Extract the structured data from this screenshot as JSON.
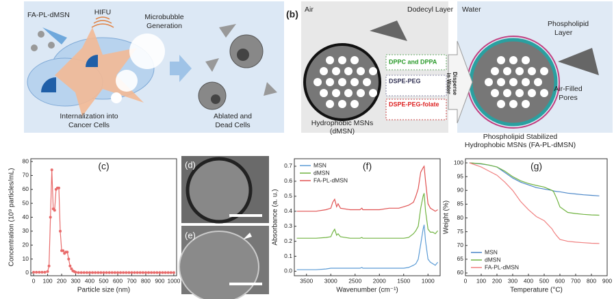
{
  "panel_a": {
    "fa_pl_dmsn": "FA-PL-dMSN",
    "hifu": "HIFU",
    "microbubble": [
      "Microbubble",
      "Generation"
    ],
    "internalization": [
      "Internalization into",
      "Cancer Cells"
    ],
    "ablated": [
      "Ablated and",
      "Dead Cells"
    ]
  },
  "panel_b": {
    "label": "(b)",
    "air": "Air",
    "dodecyl": "Dodecyl Layer",
    "dppc": "DPPC and DPPA",
    "dspe_peg": "DSPE-PEG",
    "dspe_peg_folate": "DSPE-PEG-folate",
    "disperse": [
      "Disperse",
      "in Water"
    ],
    "water": "Water",
    "phospholipid": [
      "Phospholipid",
      "Layer"
    ],
    "pores": [
      "Air-Filled",
      "Pores"
    ],
    "dmsn": [
      "Hydrophobic MSNs",
      "(dMSN)"
    ],
    "fa_pl": [
      "Phospholipid Stabilized",
      "Hydrophobic MSNs (FA-PL-dMSN)"
    ]
  },
  "panel_d": "(d)",
  "panel_e": "(e)",
  "chart_data": [
    {
      "type": "line",
      "title": "(c)",
      "xlabel": "Particle size (nm)",
      "ylabel": "Concentration (10⁹ particles/mL)",
      "x": [
        0,
        20,
        40,
        60,
        80,
        100,
        110,
        120,
        130,
        140,
        150,
        160,
        170,
        180,
        190,
        200,
        210,
        220,
        230,
        240,
        250,
        260,
        270,
        280,
        290,
        300,
        320,
        340,
        360,
        380,
        400,
        420,
        440,
        460,
        480,
        500,
        520,
        540,
        560,
        580,
        600,
        620,
        640,
        660,
        680,
        700,
        720,
        740,
        760,
        780,
        800,
        820,
        840,
        860,
        880,
        900,
        920,
        940,
        960,
        980,
        1000
      ],
      "series": [
        {
          "color": "#e86b6b",
          "markers": true,
          "values": [
            0.5,
            0.5,
            0.5,
            0.5,
            0.5,
            1,
            5,
            40,
            74,
            46,
            45,
            60,
            61,
            61,
            30,
            16,
            16,
            14,
            15,
            15,
            10,
            5,
            3,
            1.5,
            1,
            0.5,
            0.3,
            0.3,
            0.3,
            0.3,
            0.3,
            0.3,
            0.3,
            0.3,
            0.3,
            0.3,
            0.3,
            0.3,
            0.3,
            0.3,
            0.3,
            0.3,
            0.3,
            0.3,
            0.3,
            0.3,
            0.3,
            0.3,
            0.3,
            0.3,
            0.3,
            0.3,
            0.3,
            0.3,
            0.3,
            0.3,
            0.3,
            0.3,
            0.3,
            0.3,
            0.3
          ]
        }
      ],
      "xlim": [
        -20,
        1020
      ],
      "ylim": [
        -2,
        82
      ],
      "xticks": [
        0,
        100,
        200,
        300,
        400,
        500,
        600,
        700,
        800,
        900,
        1000
      ],
      "yticks": [
        0,
        10,
        20,
        30,
        40,
        50,
        60,
        70,
        80
      ]
    },
    {
      "type": "line",
      "title": "(f)",
      "xlabel": "Wavenumber (cm⁻¹)",
      "ylabel": "Absorbance (a. u.)",
      "legend": "upper left",
      "x": [
        3700,
        3500,
        3300,
        3100,
        3000,
        2960,
        2920,
        2880,
        2850,
        2800,
        2600,
        2400,
        2360,
        2340,
        2200,
        2000,
        1800,
        1700,
        1600,
        1500,
        1400,
        1300,
        1250,
        1200,
        1150,
        1100,
        1080,
        1050,
        1000,
        950,
        900,
        850,
        800
      ],
      "series": [
        {
          "name": "MSN",
          "color": "#5b9bd5",
          "values": [
            0.01,
            0.01,
            0.01,
            0.015,
            0.02,
            0.02,
            0.02,
            0.02,
            0.02,
            0.02,
            0.02,
            0.02,
            0.025,
            0.02,
            0.02,
            0.02,
            0.02,
            0.02,
            0.02,
            0.02,
            0.025,
            0.04,
            0.05,
            0.08,
            0.18,
            0.28,
            0.31,
            0.2,
            0.08,
            0.06,
            0.05,
            0.04,
            0.06
          ]
        },
        {
          "name": "dMSN",
          "color": "#70b340",
          "values": [
            0.22,
            0.22,
            0.22,
            0.225,
            0.23,
            0.26,
            0.28,
            0.24,
            0.25,
            0.23,
            0.22,
            0.22,
            0.225,
            0.22,
            0.22,
            0.22,
            0.22,
            0.22,
            0.22,
            0.22,
            0.225,
            0.25,
            0.27,
            0.3,
            0.42,
            0.5,
            0.52,
            0.4,
            0.28,
            0.26,
            0.26,
            0.25,
            0.27
          ]
        },
        {
          "name": "FA-PL-dMSN",
          "color": "#e05050",
          "values": [
            0.4,
            0.4,
            0.4,
            0.41,
            0.42,
            0.46,
            0.48,
            0.43,
            0.45,
            0.42,
            0.41,
            0.41,
            0.42,
            0.41,
            0.41,
            0.41,
            0.42,
            0.42,
            0.42,
            0.43,
            0.44,
            0.46,
            0.5,
            0.55,
            0.66,
            0.69,
            0.7,
            0.6,
            0.45,
            0.42,
            0.41,
            0.4,
            0.41
          ]
        }
      ],
      "xlim": [
        3750,
        750
      ],
      "ylim": [
        -0.03,
        0.75
      ],
      "xticks": [
        3500,
        3000,
        2500,
        2000,
        1500,
        1000
      ],
      "yticks": [
        {
          "value": 0,
          "label": "0.0"
        },
        0.1,
        0.2,
        0.3,
        0.4,
        0.5,
        0.6,
        0.7
      ]
    },
    {
      "type": "line",
      "title": "(g)",
      "xlabel": "Temperature (°C)",
      "ylabel": "Weight (%)",
      "legend": "lower left",
      "x": [
        25,
        100,
        150,
        200,
        250,
        300,
        350,
        400,
        450,
        500,
        550,
        560,
        580,
        600,
        650,
        700,
        750,
        800,
        850
      ],
      "series": [
        {
          "name": "MSN",
          "color": "#4a86c8",
          "values": [
            100,
            99.6,
            99.2,
            98.5,
            96.5,
            94.5,
            93,
            92,
            91,
            90.5,
            90,
            89.8,
            89.6,
            89.5,
            89,
            88.7,
            88.4,
            88.2,
            88
          ]
        },
        {
          "name": "dMSN",
          "color": "#70b340",
          "values": [
            100,
            99.7,
            99.2,
            98.5,
            97,
            95,
            93.5,
            92.5,
            91.8,
            91.2,
            90,
            89.5,
            87,
            84,
            82,
            81.6,
            81.3,
            81.1,
            81
          ]
        },
        {
          "name": "FA-PL-dMSN",
          "color": "#f08080",
          "values": [
            100,
            98.5,
            97,
            95.5,
            93,
            90,
            86,
            83,
            80.5,
            79,
            76,
            75,
            73.5,
            72.2,
            71.5,
            71.2,
            71,
            70.8,
            70.7
          ]
        }
      ],
      "xlim": [
        0,
        900
      ],
      "ylim": [
        59,
        101.5
      ],
      "xticks": [
        0,
        100,
        200,
        300,
        400,
        500,
        600,
        700,
        800,
        900
      ],
      "yticks": [
        60,
        65,
        70,
        75,
        80,
        85,
        90,
        95,
        100
      ]
    }
  ]
}
